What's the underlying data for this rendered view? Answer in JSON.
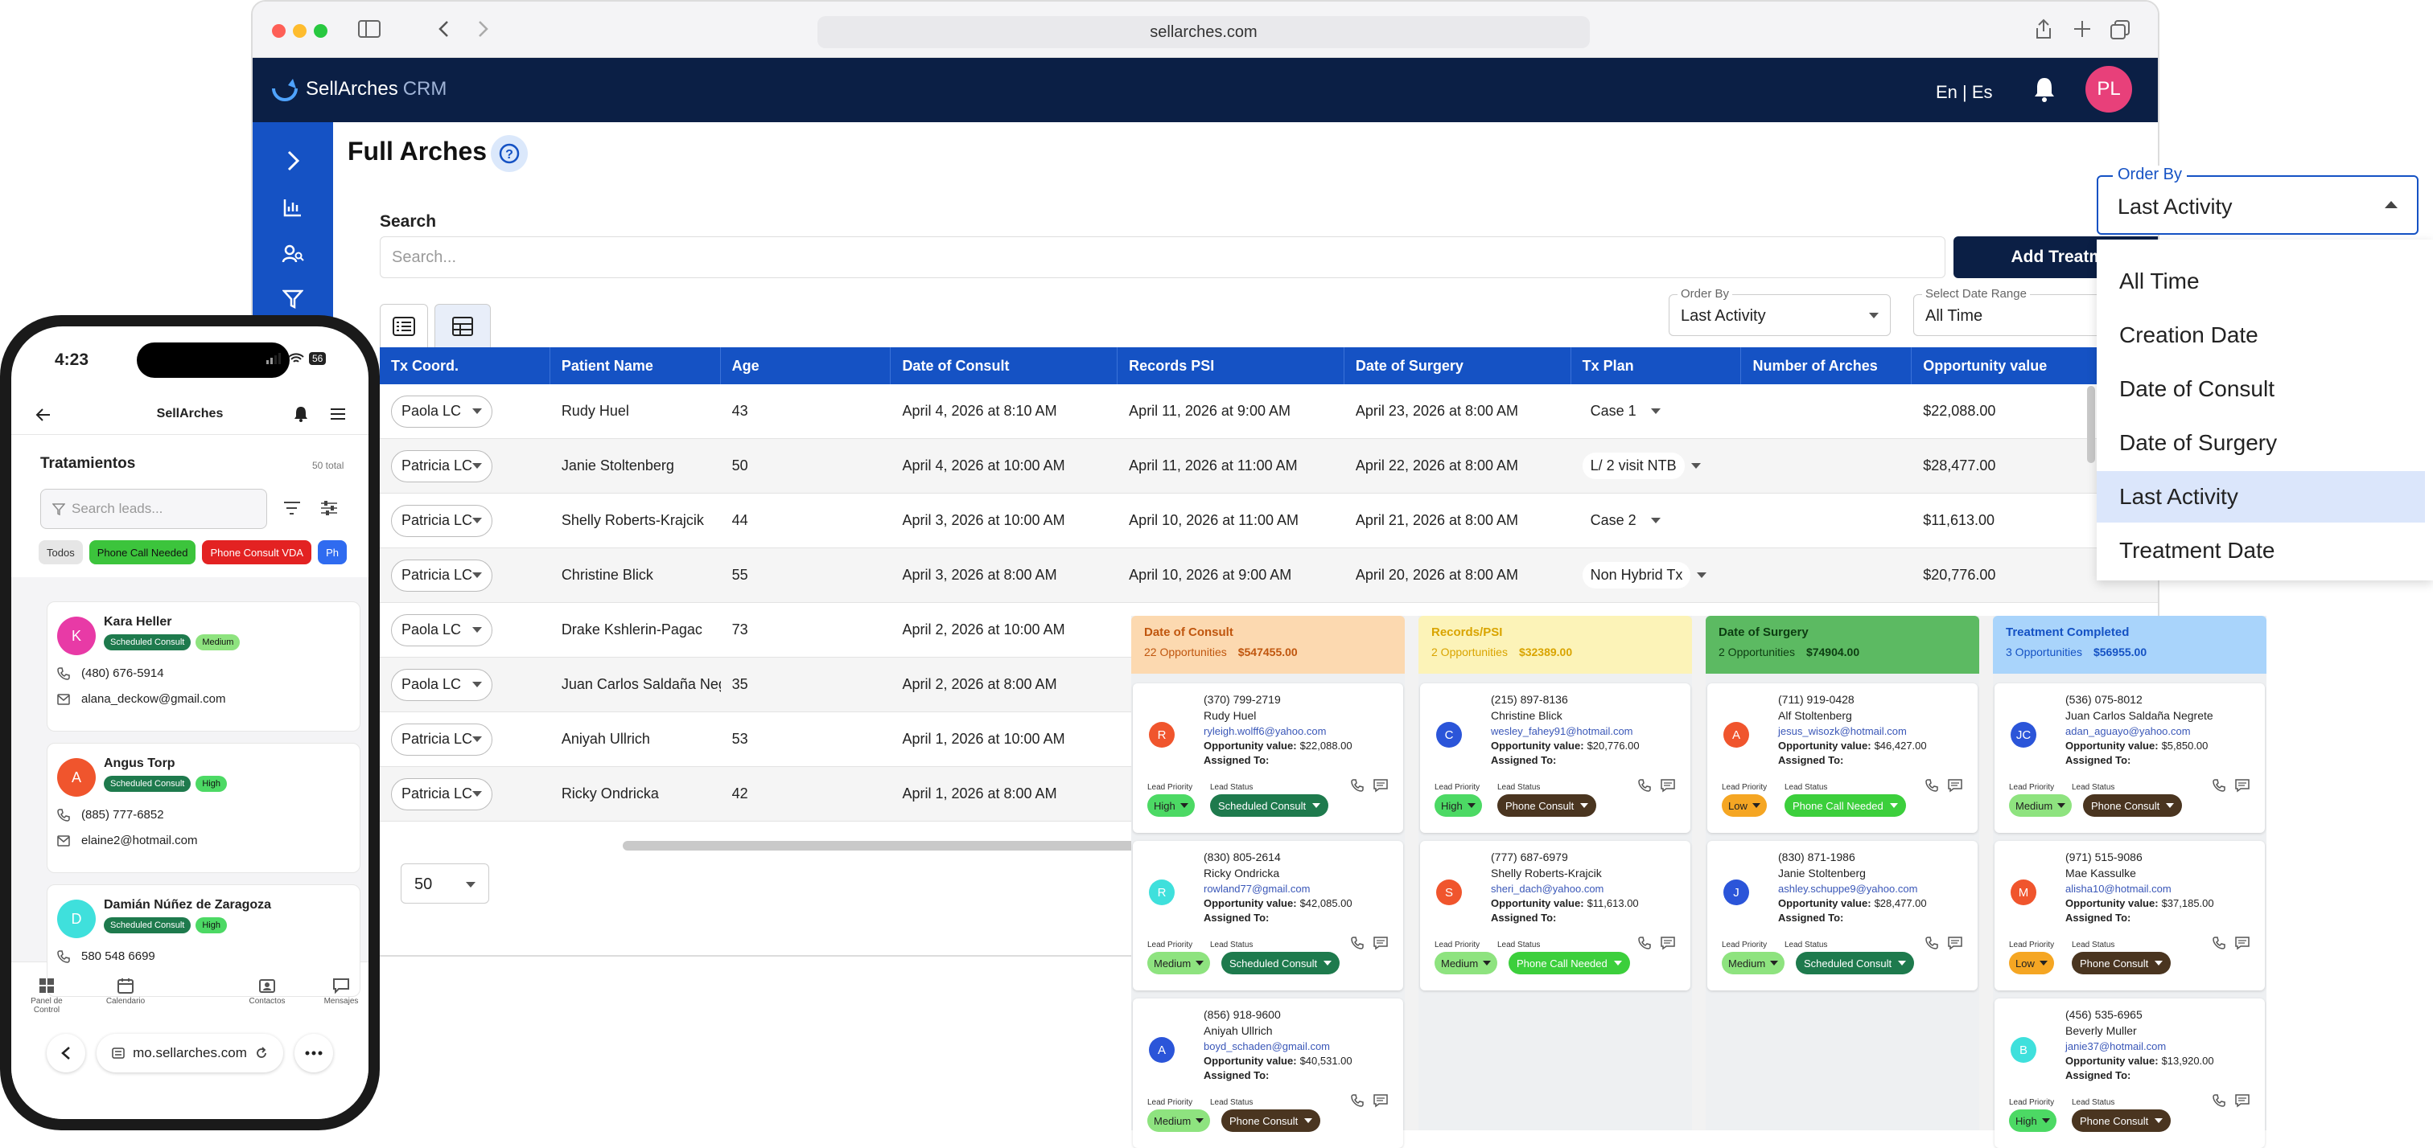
{
  "browser": {
    "url": "sellarches.com"
  },
  "app": {
    "logo": "SellArches",
    "logo_suffix": "CRM",
    "language": "En | Es",
    "avatar": "PL"
  },
  "page": {
    "title": "Full Arches"
  },
  "search": {
    "label": "Search",
    "placeholder": "Search...",
    "add_button": "Add Treatment"
  },
  "filters": {
    "order_label": "Order By",
    "order_value": "Last Activity",
    "range_label": "Select Date Range",
    "range_value": "All Time"
  },
  "table": {
    "headers": [
      "Tx Coord.",
      "Patient Name",
      "Age",
      "Date of Consult",
      "Records PSI",
      "Date of Surgery",
      "Tx Plan",
      "Number of Arches",
      "Opportunity value"
    ],
    "rows": [
      {
        "coord": "Paola LC",
        "name": "Rudy Huel",
        "age": "43",
        "consult": "April 4, 2026 at 8:10 AM",
        "records": "April 11, 2026 at 9:00 AM",
        "surgery": "April 23, 2026 at 8:00 AM",
        "plan": "Case 1",
        "value": "$22,088.00"
      },
      {
        "coord": "Patricia LC",
        "name": "Janie Stoltenberg",
        "age": "50",
        "consult": "April 4, 2026 at 10:00 AM",
        "records": "April 11, 2026 at 11:00 AM",
        "surgery": "April 22, 2026 at 8:00 AM",
        "plan": "L/ 2 visit NTB",
        "value": "$28,477.00"
      },
      {
        "coord": "Patricia LC",
        "name": "Shelly Roberts-Krajcik",
        "age": "44",
        "consult": "April 3, 2026 at 10:00 AM",
        "records": "April 10, 2026 at 11:00 AM",
        "surgery": "April 21, 2026 at 8:00 AM",
        "plan": "Case 2",
        "value": "$11,613.00"
      },
      {
        "coord": "Patricia LC",
        "name": "Christine Blick",
        "age": "55",
        "consult": "April 3, 2026 at 8:00 AM",
        "records": "April 10, 2026 at 9:00 AM",
        "surgery": "April 20, 2026 at 8:00 AM",
        "plan": "Non Hybrid Tx",
        "value": "$20,776.00"
      },
      {
        "coord": "Paola LC",
        "name": "Drake Kshlerin-Pagac",
        "age": "73",
        "consult": "April 2, 2026 at 10:00 AM",
        "records": "",
        "surgery": "",
        "plan": "",
        "value": ""
      },
      {
        "coord": "Paola LC",
        "name": "Juan Carlos Saldaña Neg",
        "age": "35",
        "consult": "April 2, 2026 at 8:00 AM",
        "records": "",
        "surgery": "",
        "plan": "",
        "value": ""
      },
      {
        "coord": "Patricia LC",
        "name": "Aniyah Ullrich",
        "age": "53",
        "consult": "April 1, 2026 at 10:00 AM",
        "records": "",
        "surgery": "",
        "plan": "",
        "value": ""
      },
      {
        "coord": "Patricia LC",
        "name": "Ricky Ondricka",
        "age": "42",
        "consult": "April 1, 2026 at 8:00 AM",
        "records": "",
        "surgery": "",
        "plan": "",
        "value": ""
      }
    ],
    "page_size": "50"
  },
  "order_dropdown": {
    "label": "Order By",
    "value": "Last Activity",
    "options": [
      "All Time",
      "Creation Date",
      "Date of Consult",
      "Date of Surgery",
      "Last Activity",
      "Treatment Date"
    ]
  },
  "kanban": {
    "labels": {
      "opportunity": "Opportunity value:",
      "assigned": "Assigned To:",
      "priority": "Lead Priority",
      "status": "Lead Status"
    },
    "columns": [
      {
        "title": "Date of Consult",
        "count": "22 Opportunities",
        "total": "$547455.00",
        "bg": "#fcd9b0",
        "fg": "#c0560e",
        "cards": [
          {
            "initial": "R",
            "color": "#f0552d",
            "phone": "(370) 799-2719",
            "name": "Rudy Huel",
            "email": "ryleigh.wolff6@yahoo.com",
            "value": "$22,088.00",
            "priority": "High",
            "status": "Scheduled Consult"
          },
          {
            "initial": "R",
            "color": "#3fe0dc",
            "phone": "(830) 805-2614",
            "name": "Ricky Ondricka",
            "email": "rowland77@gmail.com",
            "value": "$42,085.00",
            "priority": "Medium",
            "status": "Scheduled Consult"
          },
          {
            "initial": "A",
            "color": "#2b55d9",
            "phone": "(856) 918-9600",
            "name": "Aniyah Ullrich",
            "email": "boyd_schaden@gmail.com",
            "value": "$40,531.00",
            "priority": "Medium",
            "status": "Phone Consult"
          }
        ]
      },
      {
        "title": "Records/PSI",
        "count": "2 Opportunities",
        "total": "$32389.00",
        "bg": "#fcf3b8",
        "fg": "#d9a400",
        "cards": [
          {
            "initial": "C",
            "color": "#2b55d9",
            "phone": "(215) 897-8136",
            "name": "Christine Blick",
            "email": "wesley_fahey91@hotmail.com",
            "value": "$20,776.00",
            "priority": "High",
            "status": "Phone Consult"
          },
          {
            "initial": "S",
            "color": "#f0552d",
            "phone": "(777) 687-6979",
            "name": "Shelly Roberts-Krajcik",
            "email": "sheri_dach@yahoo.com",
            "value": "$11,613.00",
            "priority": "Medium",
            "status": "Phone Call Needed"
          }
        ]
      },
      {
        "title": "Date of Surgery",
        "count": "2 Opportunities",
        "total": "$74904.00",
        "bg": "#5cba62",
        "fg": "#0d3d12",
        "cards": [
          {
            "initial": "A",
            "color": "#f0552d",
            "phone": "(711) 919-0428",
            "name": "Alf Stoltenberg",
            "email": "jesus_wisozk@hotmail.com",
            "value": "$46,427.00",
            "priority": "Low",
            "status": "Phone Call Needed"
          },
          {
            "initial": "J",
            "color": "#2b55d9",
            "phone": "(830) 871-1986",
            "name": "Janie Stoltenberg",
            "email": "ashley.schuppe9@yahoo.com",
            "value": "$28,477.00",
            "priority": "Medium",
            "status": "Scheduled Consult"
          }
        ]
      },
      {
        "title": "Treatment Completed",
        "count": "3 Opportunities",
        "total": "$56955.00",
        "bg": "#a9d4fb",
        "fg": "#1552c4",
        "cards": [
          {
            "initial": "JC",
            "color": "#2b55d9",
            "phone": "(536) 075-8012",
            "name": "Juan Carlos Saldaña Negrete",
            "email": "adan_aguayo@yahoo.com",
            "value": "$5,850.00",
            "priority": "Medium",
            "status": "Phone Consult"
          },
          {
            "initial": "M",
            "color": "#f0552d",
            "phone": "(971) 515-9086",
            "name": "Mae Kassulke",
            "email": "alisha10@hotmail.com",
            "value": "$37,185.00",
            "priority": "Low",
            "status": "Phone Consult"
          },
          {
            "initial": "B",
            "color": "#3fe0dc",
            "phone": "(456) 535-6965",
            "name": "Beverly Muller",
            "email": "janie37@hotmail.com",
            "value": "$13,920.00",
            "priority": "High",
            "status": "Phone Consult"
          }
        ]
      }
    ]
  },
  "phone": {
    "time": "4:23",
    "battery": "56",
    "title": "SellArches",
    "section": "Tratamientos",
    "total": "50 total",
    "search_placeholder": "Search leads...",
    "chips": [
      "Todos",
      "Phone Call Needed",
      "Phone Consult VDA",
      "Ph"
    ],
    "leads": [
      {
        "initial": "K",
        "color": "#e83aa6",
        "name": "Kara Heller",
        "status": "Scheduled Consult",
        "priority": "Medium",
        "phone": "(480) 676-5914",
        "email": "alana_deckow@gmail.com"
      },
      {
        "initial": "A",
        "color": "#f0552d",
        "name": "Angus Torp",
        "status": "Scheduled Consult",
        "priority": "High",
        "phone": "(885) 777-6852",
        "email": "elaine2@hotmail.com"
      },
      {
        "initial": "D",
        "color": "#3fe0dc",
        "name": "Damián Núñez de Zaragoza",
        "status": "Scheduled Consult",
        "priority": "High",
        "phone": "580 548 6699",
        "email": ""
      }
    ],
    "nav": [
      "Panel de Control",
      "Calendario",
      "Contactos",
      "Mensajes"
    ],
    "url": "mo.sellarches.com"
  },
  "colors": {
    "navy": "#0b1f45",
    "blue": "#1552c4",
    "accent": "#e8407a"
  }
}
